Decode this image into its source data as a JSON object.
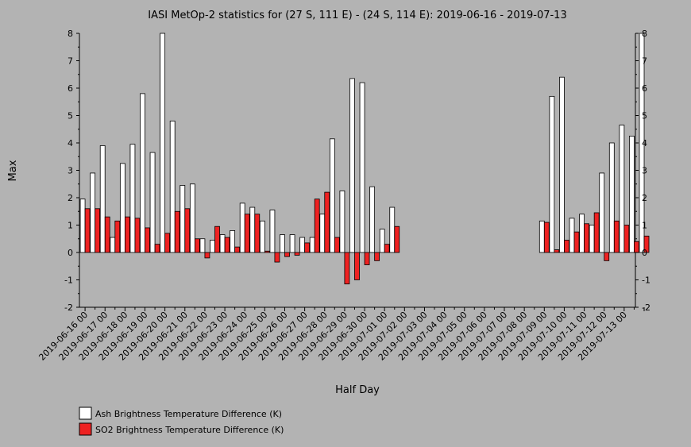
{
  "chart_data": {
    "type": "bar",
    "title": "IASI MetOp-2 statistics for (27 S, 111 E) - (24 S, 114 E): 2019-06-16 - 2019-07-13",
    "xlabel": "Half Day",
    "ylabel": "Max",
    "ylim": [
      -2,
      8
    ],
    "yticks": [
      -2,
      -1,
      0,
      1,
      2,
      3,
      4,
      5,
      6,
      7,
      8
    ],
    "grid": false,
    "legend_position": "bottom-left",
    "tick_labels": [
      "2019-06-16 00",
      "2019-06-17 00",
      "2019-06-18 00",
      "2019-06-19 00",
      "2019-06-20 00",
      "2019-06-21 00",
      "2019-06-22 00",
      "2019-06-23 00",
      "2019-06-24 00",
      "2019-06-25 00",
      "2019-06-26 00",
      "2019-06-27 00",
      "2019-06-28 00",
      "2019-06-29 00",
      "2019-06-30 00",
      "2019-07-01 00",
      "2019-07-02 00",
      "2019-07-03 00",
      "2019-07-04 00",
      "2019-07-05 00",
      "2019-07-06 00",
      "2019-07-07 00",
      "2019-07-08 00",
      "2019-07-09 00",
      "2019-07-10 00",
      "2019-07-11 00",
      "2019-07-12 00",
      "2019-07-13 00"
    ],
    "series": [
      {
        "name": "Ash Brightness Temperature Difference (K)",
        "color": "#ffffff",
        "values": [
          1.95,
          2.9,
          3.9,
          0.55,
          3.25,
          3.95,
          5.8,
          3.65,
          8.0,
          4.8,
          2.45,
          2.5,
          0.5,
          0.45,
          0.65,
          0.8,
          1.8,
          1.65,
          1.15,
          1.55,
          0.65,
          0.65,
          0.55,
          0.55,
          1.4,
          4.15,
          2.25,
          6.35,
          6.2,
          2.4,
          0.85,
          1.65,
          null,
          null,
          null,
          null,
          null,
          null,
          null,
          null,
          null,
          null,
          null,
          null,
          null,
          null,
          1.15,
          5.7,
          6.4,
          1.25,
          1.4,
          1.0,
          2.9,
          4.0,
          4.65,
          4.25,
          8.0
        ]
      },
      {
        "name": "SO2 Brightness Temperature Difference (K)",
        "color": "#ee2222",
        "values": [
          1.6,
          1.6,
          1.3,
          1.15,
          1.3,
          1.25,
          0.9,
          0.3,
          0.7,
          1.5,
          1.6,
          0.5,
          -0.2,
          0.95,
          0.55,
          0.2,
          1.4,
          1.4,
          0.05,
          -0.35,
          -0.15,
          -0.1,
          0.35,
          1.95,
          2.2,
          0.55,
          -1.15,
          -1.0,
          -0.45,
          -0.3,
          0.3,
          0.95,
          null,
          null,
          null,
          null,
          null,
          null,
          null,
          null,
          null,
          null,
          null,
          null,
          null,
          null,
          1.1,
          0.1,
          0.45,
          0.75,
          1.05,
          1.45,
          -0.3,
          1.15,
          1.0,
          0.4,
          0.6
        ]
      }
    ]
  }
}
